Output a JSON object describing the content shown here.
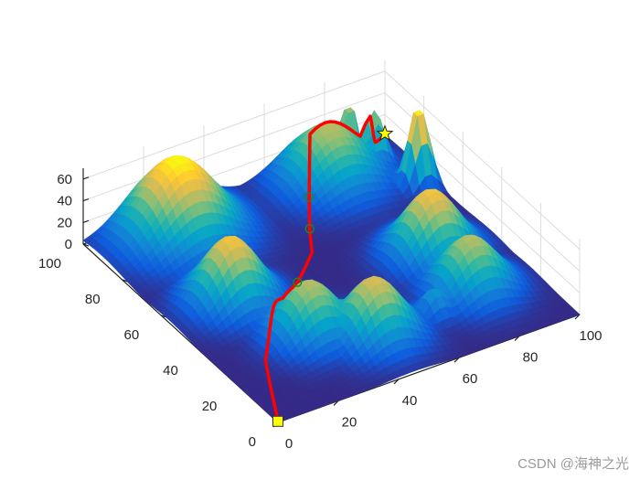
{
  "chart_data": {
    "type": "surface3d",
    "title": "",
    "x_axis": {
      "label": "",
      "range": [
        0,
        100
      ],
      "ticks": [
        0,
        20,
        40,
        60,
        80,
        100
      ]
    },
    "y_axis": {
      "label": "",
      "range": [
        0,
        100
      ],
      "ticks": [
        0,
        20,
        40,
        60,
        80,
        100
      ]
    },
    "z_axis": {
      "label": "",
      "range": [
        0,
        70
      ],
      "ticks": [
        0,
        20,
        40,
        60
      ]
    },
    "colormap": "parula",
    "colormap_stops": [
      "#352a87",
      "#0f5cdd",
      "#1481d6",
      "#06a4ca",
      "#2eb7a4",
      "#87bf77",
      "#d1bb59",
      "#fec832",
      "#f9fb0e"
    ],
    "surface_peaks": [
      {
        "x": 25,
        "y": 90,
        "height": 70,
        "spread": 11
      },
      {
        "x": 20,
        "y": 55,
        "height": 60,
        "spread": 8
      },
      {
        "x": 30,
        "y": 30,
        "height": 50,
        "spread": 8
      },
      {
        "x": 45,
        "y": 20,
        "height": 55,
        "spread": 8
      },
      {
        "x": 65,
        "y": 20,
        "height": 25,
        "spread": 4
      },
      {
        "x": 80,
        "y": 25,
        "height": 50,
        "spread": 8
      },
      {
        "x": 80,
        "y": 45,
        "height": 60,
        "spread": 8
      },
      {
        "x": 75,
        "y": 90,
        "height": 50,
        "spread": 10
      },
      {
        "x": 95,
        "y": 75,
        "height": 75,
        "spread": 3
      },
      {
        "x": 90,
        "y": 90,
        "height": 50,
        "spread": 3
      },
      {
        "x": 85,
        "y": 95,
        "height": 60,
        "spread": 2
      }
    ],
    "path": {
      "color": "#ff0000",
      "points": [
        [
          0,
          0
        ],
        [
          12,
          25
        ],
        [
          25,
          40
        ],
        [
          40,
          52
        ],
        [
          52,
          63
        ],
        [
          57,
          72
        ],
        [
          62,
          80
        ],
        [
          70,
          92
        ],
        [
          90,
          92
        ],
        [
          100,
          100
        ]
      ],
      "waypoints": [
        [
          40,
          52
        ],
        [
          57,
          72
        ],
        [
          62,
          80
        ]
      ]
    },
    "start_point": {
      "x": 0,
      "y": 0,
      "marker": "square",
      "color": "#ffff00"
    },
    "end_point": {
      "x": 100,
      "y": 100,
      "marker": "star",
      "color": "#ffff00"
    }
  },
  "watermark": "CSDN @海神之光"
}
